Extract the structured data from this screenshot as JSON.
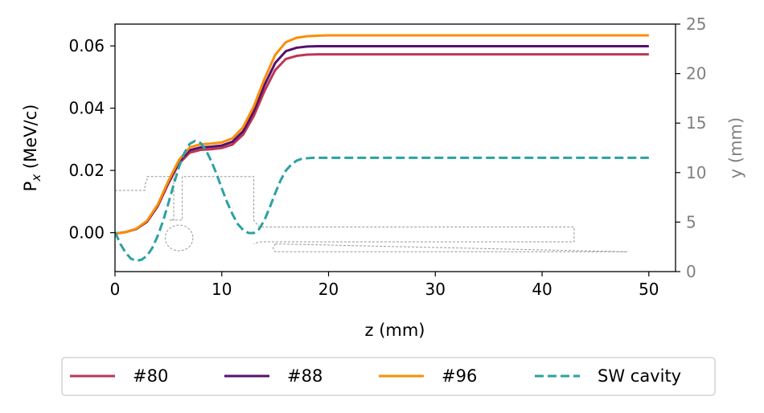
{
  "chart_data": {
    "type": "line",
    "xlabel": "z (mm)",
    "ylabel_left": "P",
    "ylabel_left_sub": "x",
    "ylabel_left_unit": " (MeV/c)",
    "ylabel_right": "y (mm)",
    "xlim": [
      0,
      52.5
    ],
    "ylim_left": [
      -0.0125,
      0.067
    ],
    "ylim_right": [
      0,
      25
    ],
    "x_ticks": [
      0,
      10,
      20,
      30,
      40,
      50
    ],
    "x_tick_labels": [
      "0",
      "10",
      "20",
      "30",
      "40",
      "50"
    ],
    "y_left_ticks": [
      0.0,
      0.02,
      0.04,
      0.06
    ],
    "y_left_tick_labels": [
      "0.00",
      "0.02",
      "0.04",
      "0.06"
    ],
    "y_right_ticks": [
      0,
      5,
      10,
      15,
      20,
      25
    ],
    "y_right_tick_labels": [
      "0",
      "5",
      "10",
      "15",
      "20",
      "25"
    ],
    "legend_placement": "below",
    "series": [
      {
        "name": "#80",
        "axis": "left",
        "color": "#bb3754",
        "style": "solid",
        "x": [
          0,
          1,
          2,
          3,
          4,
          5,
          6,
          7,
          8,
          9,
          10,
          11,
          12,
          13,
          14,
          15,
          16,
          17,
          18,
          19,
          20,
          50
        ],
        "y": [
          -0.0003,
          0.0002,
          0.0012,
          0.0035,
          0.0085,
          0.0158,
          0.0222,
          0.0257,
          0.0266,
          0.0268,
          0.0272,
          0.0283,
          0.0315,
          0.0375,
          0.0455,
          0.0522,
          0.0558,
          0.0568,
          0.0572,
          0.0573,
          0.0573,
          0.0573
        ]
      },
      {
        "name": "#88",
        "axis": "left",
        "color": "#56106e",
        "style": "solid",
        "x": [
          0,
          1,
          2,
          3,
          4,
          5,
          6,
          7,
          8,
          9,
          10,
          11,
          12,
          13,
          14,
          15,
          16,
          17,
          18,
          19,
          20,
          50
        ],
        "y": [
          -0.0003,
          0.0002,
          0.0012,
          0.0036,
          0.0087,
          0.0162,
          0.0228,
          0.0265,
          0.0274,
          0.0276,
          0.028,
          0.0292,
          0.0326,
          0.039,
          0.0474,
          0.0545,
          0.0583,
          0.0594,
          0.0598,
          0.0599,
          0.0599,
          0.0599
        ]
      },
      {
        "name": "#96",
        "axis": "left",
        "color": "#f98e09",
        "style": "solid",
        "x": [
          0,
          1,
          2,
          3,
          4,
          5,
          6,
          7,
          8,
          9,
          10,
          11,
          12,
          13,
          14,
          15,
          16,
          17,
          18,
          19,
          20,
          50
        ],
        "y": [
          -0.0003,
          0.0002,
          0.0013,
          0.0038,
          0.009,
          0.0166,
          0.0234,
          0.0274,
          0.0284,
          0.0286,
          0.029,
          0.0303,
          0.0339,
          0.0406,
          0.0494,
          0.0571,
          0.0612,
          0.0626,
          0.0631,
          0.0633,
          0.0634,
          0.0634
        ]
      },
      {
        "name": "SW cavity",
        "axis": "right",
        "color": "#2ca1a1",
        "style": "dashed",
        "x": [
          0,
          0.5,
          1,
          1.5,
          2,
          2.5,
          3,
          3.5,
          4,
          4.5,
          5,
          5.5,
          6,
          6.5,
          7,
          7.5,
          8,
          8.5,
          9,
          9.5,
          10,
          10.5,
          11,
          11.5,
          12,
          12.5,
          13,
          13.5,
          14,
          14.5,
          15,
          15.5,
          16,
          16.5,
          17,
          17.5,
          18,
          18.5,
          19,
          20,
          50
        ],
        "y": [
          4.0,
          2.8,
          1.9,
          1.3,
          1.1,
          1.2,
          1.6,
          2.4,
          3.6,
          5.1,
          6.9,
          8.8,
          10.6,
          12.0,
          12.9,
          13.2,
          13.0,
          12.3,
          11.2,
          9.9,
          8.4,
          7.0,
          5.8,
          4.8,
          4.2,
          3.9,
          3.9,
          4.3,
          5.2,
          6.5,
          7.9,
          9.2,
          10.2,
          10.8,
          11.2,
          11.4,
          11.45,
          11.5,
          11.5,
          11.5,
          11.5
        ]
      }
    ],
    "geometry_outline": {
      "axis": "right",
      "color": "#999999",
      "style": "dashed",
      "polylines": [
        {
          "x": [
            0,
            2.8,
            2.8,
            3.0,
            3.0,
            5.5,
            5.5,
            5.1,
            6.3,
            6.3,
            13.0,
            13.0,
            13.5,
            43.0,
            43.0,
            13.5,
            13.0
          ],
          "y": [
            8.2,
            8.2,
            8.8,
            9.2,
            9.6,
            9.6,
            5.2,
            5.2,
            5.2,
            9.6,
            9.6,
            5.2,
            4.5,
            4.5,
            3.0,
            3.0,
            2.8
          ]
        },
        {
          "x": [
            15.0,
            48.0,
            15.0,
            14.8,
            15.0
          ],
          "y": [
            2.8,
            2.0,
            2.0,
            2.4,
            2.8
          ]
        }
      ],
      "circle": {
        "cx": 6.0,
        "cy": 3.4,
        "r": 1.3
      }
    }
  }
}
